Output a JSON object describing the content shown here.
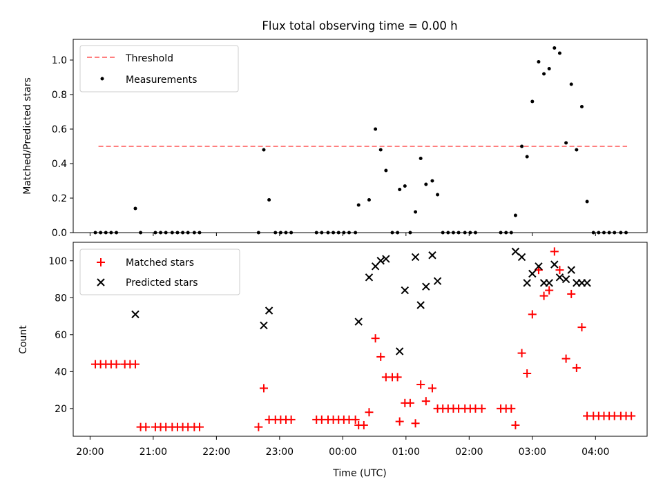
{
  "title": "Flux total observing time = 0.00 h",
  "chart_data": [
    {
      "type": "scatter",
      "ylabel": "Matched/Predicted stars",
      "xlabel": "",
      "ylim": [
        0,
        1.12
      ],
      "yticks": [
        0.0,
        0.2,
        0.4,
        0.6,
        0.8,
        1.0
      ],
      "ytick_labels": [
        "0.0",
        "0.2",
        "0.4",
        "0.6",
        "0.8",
        "1.0"
      ],
      "legend_position": "top-left",
      "threshold": {
        "name": "Threshold",
        "y": 0.5,
        "x_start": "20:08",
        "x_end": "04:30",
        "color": "#ff7f7f",
        "style": "dashed"
      },
      "series": [
        {
          "name": "Measurements",
          "marker": "dot",
          "color": "#000000",
          "points": [
            [
              "20:05",
              0
            ],
            [
              "20:10",
              0
            ],
            [
              "20:15",
              0
            ],
            [
              "20:20",
              0
            ],
            [
              "20:25",
              0
            ],
            [
              "20:43",
              0.14
            ],
            [
              "20:48",
              0
            ],
            [
              "21:02",
              0
            ],
            [
              "21:07",
              0
            ],
            [
              "21:12",
              0
            ],
            [
              "21:18",
              0
            ],
            [
              "21:23",
              0
            ],
            [
              "21:28",
              0
            ],
            [
              "21:33",
              0
            ],
            [
              "21:39",
              0
            ],
            [
              "21:44",
              0
            ],
            [
              "22:40",
              0
            ],
            [
              "22:45",
              0.48
            ],
            [
              "22:50",
              0.19
            ],
            [
              "22:56",
              0
            ],
            [
              "23:01",
              0
            ],
            [
              "23:06",
              0
            ],
            [
              "23:11",
              0
            ],
            [
              "23:35",
              0
            ],
            [
              "23:40",
              0
            ],
            [
              "23:46",
              0
            ],
            [
              "23:51",
              0
            ],
            [
              "23:56",
              0
            ],
            [
              "00:01",
              0
            ],
            [
              "00:06",
              0
            ],
            [
              "00:12",
              0
            ],
            [
              "00:15",
              0.16
            ],
            [
              "00:25",
              0.19
            ],
            [
              "00:31",
              0.6
            ],
            [
              "00:36",
              0.48
            ],
            [
              "00:41",
              0.36
            ],
            [
              "00:47",
              0
            ],
            [
              "00:52",
              0
            ],
            [
              "00:54",
              0.25
            ],
            [
              "00:59",
              0.27
            ],
            [
              "01:04",
              0
            ],
            [
              "01:09",
              0.12
            ],
            [
              "01:14",
              0.43
            ],
            [
              "01:19",
              0.28
            ],
            [
              "01:25",
              0.3
            ],
            [
              "01:30",
              0.22
            ],
            [
              "01:35",
              0
            ],
            [
              "01:40",
              0
            ],
            [
              "01:45",
              0
            ],
            [
              "01:50",
              0
            ],
            [
              "01:56",
              0
            ],
            [
              "02:01",
              0
            ],
            [
              "02:06",
              0
            ],
            [
              "02:30",
              0
            ],
            [
              "02:35",
              0
            ],
            [
              "02:40",
              0
            ],
            [
              "02:44",
              0.1
            ],
            [
              "02:50",
              0.5
            ],
            [
              "02:55",
              0.44
            ],
            [
              "03:00",
              0.76
            ],
            [
              "03:06",
              0.99
            ],
            [
              "03:11",
              0.92
            ],
            [
              "03:16",
              0.95
            ],
            [
              "03:21",
              1.07
            ],
            [
              "03:26",
              1.04
            ],
            [
              "03:32",
              0.52
            ],
            [
              "03:37",
              0.86
            ],
            [
              "03:42",
              0.48
            ],
            [
              "03:47",
              0.73
            ],
            [
              "03:52",
              0.18
            ],
            [
              "03:58",
              0
            ],
            [
              "04:03",
              0
            ],
            [
              "04:08",
              0
            ],
            [
              "04:13",
              0
            ],
            [
              "04:18",
              0
            ],
            [
              "04:24",
              0
            ],
            [
              "04:29",
              0
            ]
          ]
        }
      ]
    },
    {
      "type": "scatter",
      "ylabel": "Count",
      "xlabel": "Time (UTC)",
      "ylim": [
        5,
        110
      ],
      "yticks": [
        20,
        40,
        60,
        80,
        100
      ],
      "ytick_labels": [
        "20",
        "40",
        "60",
        "80",
        "100"
      ],
      "xlim": [
        "19:44",
        "04:49"
      ],
      "xticks": [
        "20:00",
        "21:00",
        "22:00",
        "23:00",
        "00:00",
        "01:00",
        "02:00",
        "03:00",
        "04:00"
      ],
      "legend_position": "top-left",
      "series": [
        {
          "name": "Matched stars",
          "marker": "plus",
          "color": "#ff0000",
          "points": [
            [
              "20:05",
              44
            ],
            [
              "20:10",
              44
            ],
            [
              "20:15",
              44
            ],
            [
              "20:20",
              44
            ],
            [
              "20:25",
              44
            ],
            [
              "20:33",
              44
            ],
            [
              "20:38",
              44
            ],
            [
              "20:43",
              44
            ],
            [
              "20:48",
              10
            ],
            [
              "20:53",
              10
            ],
            [
              "21:02",
              10
            ],
            [
              "21:07",
              10
            ],
            [
              "21:12",
              10
            ],
            [
              "21:18",
              10
            ],
            [
              "21:23",
              10
            ],
            [
              "21:28",
              10
            ],
            [
              "21:33",
              10
            ],
            [
              "21:39",
              10
            ],
            [
              "21:44",
              10
            ],
            [
              "22:40",
              10
            ],
            [
              "22:45",
              31
            ],
            [
              "22:50",
              14
            ],
            [
              "22:56",
              14
            ],
            [
              "23:01",
              14
            ],
            [
              "23:06",
              14
            ],
            [
              "23:11",
              14
            ],
            [
              "23:35",
              14
            ],
            [
              "23:40",
              14
            ],
            [
              "23:46",
              14
            ],
            [
              "23:51",
              14
            ],
            [
              "23:56",
              14
            ],
            [
              "00:01",
              14
            ],
            [
              "00:06",
              14
            ],
            [
              "00:12",
              14
            ],
            [
              "00:15",
              11
            ],
            [
              "00:20",
              11
            ],
            [
              "00:25",
              18
            ],
            [
              "00:31",
              58
            ],
            [
              "00:36",
              48
            ],
            [
              "00:41",
              37
            ],
            [
              "00:47",
              37
            ],
            [
              "00:52",
              37
            ],
            [
              "00:54",
              13
            ],
            [
              "00:59",
              23
            ],
            [
              "01:04",
              23
            ],
            [
              "01:09",
              12
            ],
            [
              "01:14",
              33
            ],
            [
              "01:19",
              24
            ],
            [
              "01:25",
              31
            ],
            [
              "01:30",
              20
            ],
            [
              "01:35",
              20
            ],
            [
              "01:40",
              20
            ],
            [
              "01:45",
              20
            ],
            [
              "01:50",
              20
            ],
            [
              "01:56",
              20
            ],
            [
              "02:01",
              20
            ],
            [
              "02:06",
              20
            ],
            [
              "02:12",
              20
            ],
            [
              "02:30",
              20
            ],
            [
              "02:35",
              20
            ],
            [
              "02:40",
              20
            ],
            [
              "02:44",
              11
            ],
            [
              "02:50",
              50
            ],
            [
              "02:55",
              39
            ],
            [
              "03:00",
              71
            ],
            [
              "03:06",
              95
            ],
            [
              "03:11",
              81
            ],
            [
              "03:16",
              84
            ],
            [
              "03:21",
              105
            ],
            [
              "03:26",
              95
            ],
            [
              "03:32",
              47
            ],
            [
              "03:37",
              82
            ],
            [
              "03:42",
              42
            ],
            [
              "03:47",
              64
            ],
            [
              "03:52",
              16
            ],
            [
              "03:58",
              16
            ],
            [
              "04:03",
              16
            ],
            [
              "04:08",
              16
            ],
            [
              "04:13",
              16
            ],
            [
              "04:18",
              16
            ],
            [
              "04:24",
              16
            ],
            [
              "04:29",
              16
            ],
            [
              "04:34",
              16
            ]
          ]
        },
        {
          "name": "Predicted stars",
          "marker": "x",
          "color": "#000000",
          "points": [
            [
              "20:43",
              71
            ],
            [
              "22:45",
              65
            ],
            [
              "22:50",
              73
            ],
            [
              "00:15",
              67
            ],
            [
              "00:25",
              91
            ],
            [
              "00:31",
              97
            ],
            [
              "00:36",
              100
            ],
            [
              "00:41",
              101
            ],
            [
              "00:54",
              51
            ],
            [
              "00:59",
              84
            ],
            [
              "01:09",
              102
            ],
            [
              "01:14",
              76
            ],
            [
              "01:19",
              86
            ],
            [
              "01:25",
              103
            ],
            [
              "01:30",
              89
            ],
            [
              "02:44",
              105
            ],
            [
              "02:50",
              102
            ],
            [
              "02:55",
              88
            ],
            [
              "03:00",
              93
            ],
            [
              "03:06",
              97
            ],
            [
              "03:11",
              88
            ],
            [
              "03:16",
              88
            ],
            [
              "03:21",
              98
            ],
            [
              "03:26",
              91
            ],
            [
              "03:32",
              90
            ],
            [
              "03:37",
              95
            ],
            [
              "03:42",
              88
            ],
            [
              "03:47",
              88
            ],
            [
              "03:52",
              88
            ]
          ]
        }
      ]
    }
  ]
}
